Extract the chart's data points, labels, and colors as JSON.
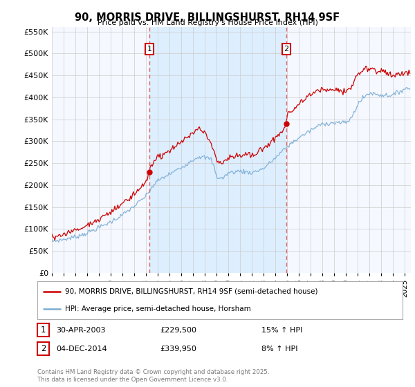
{
  "title": "90, MORRIS DRIVE, BILLINGSHURST, RH14 9SF",
  "subtitle": "Price paid vs. HM Land Registry's House Price Index (HPI)",
  "legend_line1": "90, MORRIS DRIVE, BILLINGSHURST, RH14 9SF (semi-detached house)",
  "legend_line2": "HPI: Average price, semi-detached house, Horsham",
  "marker1_date": "30-APR-2003",
  "marker1_price": 229500,
  "marker1_label": "£229,500",
  "marker1_hpi": "15% ↑ HPI",
  "marker1_year": 2003.29,
  "marker1_value": 229500,
  "marker2_date": "04-DEC-2014",
  "marker2_price": 339950,
  "marker2_label": "£339,950",
  "marker2_hpi": "8% ↑ HPI",
  "marker2_year": 2014.92,
  "marker2_value": 339950,
  "footer": "Contains HM Land Registry data © Crown copyright and database right 2025.\nThis data is licensed under the Open Government Licence v3.0.",
  "red_color": "#cc0000",
  "blue_color": "#7aadd4",
  "shade_color": "#ddeeff",
  "plot_bg": "#f5f8ff",
  "vline_color": "#dd6666",
  "grid_color": "#cccccc",
  "ylim": [
    0,
    560000
  ],
  "yticks": [
    0,
    50000,
    100000,
    150000,
    200000,
    250000,
    300000,
    350000,
    400000,
    450000,
    500000,
    550000
  ],
  "year_start": 1995,
  "year_end": 2025
}
